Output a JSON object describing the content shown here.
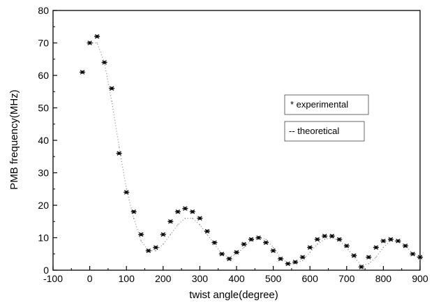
{
  "chart_data": {
    "type": "scatter",
    "title": "",
    "xlabel": "twist angle(degree)",
    "ylabel": "PMB frequency(MHz)",
    "xlim": [
      -100,
      900
    ],
    "ylim": [
      0,
      80
    ],
    "xticks": [
      "-100",
      "0",
      "100",
      "200",
      "300",
      "400",
      "500",
      "600",
      "700",
      "800",
      "900"
    ],
    "yticks": [
      "0",
      "10",
      "20",
      "30",
      "40",
      "50",
      "60",
      "70",
      "80"
    ],
    "grid": false,
    "legend_position": "right",
    "series": [
      {
        "name": "* experimental",
        "marker": "asterisk",
        "x": [
          -20,
          0,
          20,
          40,
          60,
          80,
          100,
          120,
          140,
          160,
          180,
          200,
          220,
          240,
          260,
          280,
          300,
          320,
          340,
          360,
          380,
          400,
          420,
          440,
          460,
          480,
          500,
          520,
          540,
          560,
          580,
          600,
          620,
          640,
          660,
          680,
          700,
          720,
          740,
          760,
          780,
          800,
          820,
          840,
          860,
          880,
          900
        ],
        "y": [
          61,
          70,
          72,
          64,
          56,
          36,
          24,
          18,
          11,
          6,
          7,
          11,
          15,
          18,
          19,
          18,
          16,
          12,
          8.5,
          5,
          3.5,
          5.5,
          8,
          9.5,
          10,
          8.5,
          6,
          3.5,
          2,
          2.5,
          4,
          7,
          9.5,
          10.5,
          10.5,
          9.5,
          7.5,
          4.5,
          1,
          4,
          7,
          9,
          9.5,
          9,
          7.5,
          5,
          4
        ]
      },
      {
        "name": "-- theoretical",
        "marker": "dots",
        "x": [
          0,
          20,
          40,
          60,
          80,
          100,
          120,
          140,
          160,
          180,
          200,
          220,
          240,
          260,
          280,
          300,
          320,
          340,
          360,
          380,
          400,
          420,
          440,
          460,
          480,
          500,
          520,
          540,
          560,
          580,
          600,
          620,
          640,
          660,
          680,
          700,
          720,
          740,
          760,
          780,
          800,
          820,
          840,
          860,
          880,
          900
        ],
        "y": [
          70,
          70,
          64,
          52,
          38,
          25,
          16,
          9,
          6,
          6,
          8,
          11,
          14,
          16,
          16,
          14,
          11,
          8,
          5,
          4,
          5,
          7,
          9,
          10,
          9.5,
          7,
          4,
          2,
          2,
          3,
          5.5,
          8,
          9.5,
          10,
          9,
          7,
          4,
          1.5,
          2,
          4,
          7,
          9,
          9,
          7.5,
          5,
          3.5
        ]
      }
    ]
  }
}
